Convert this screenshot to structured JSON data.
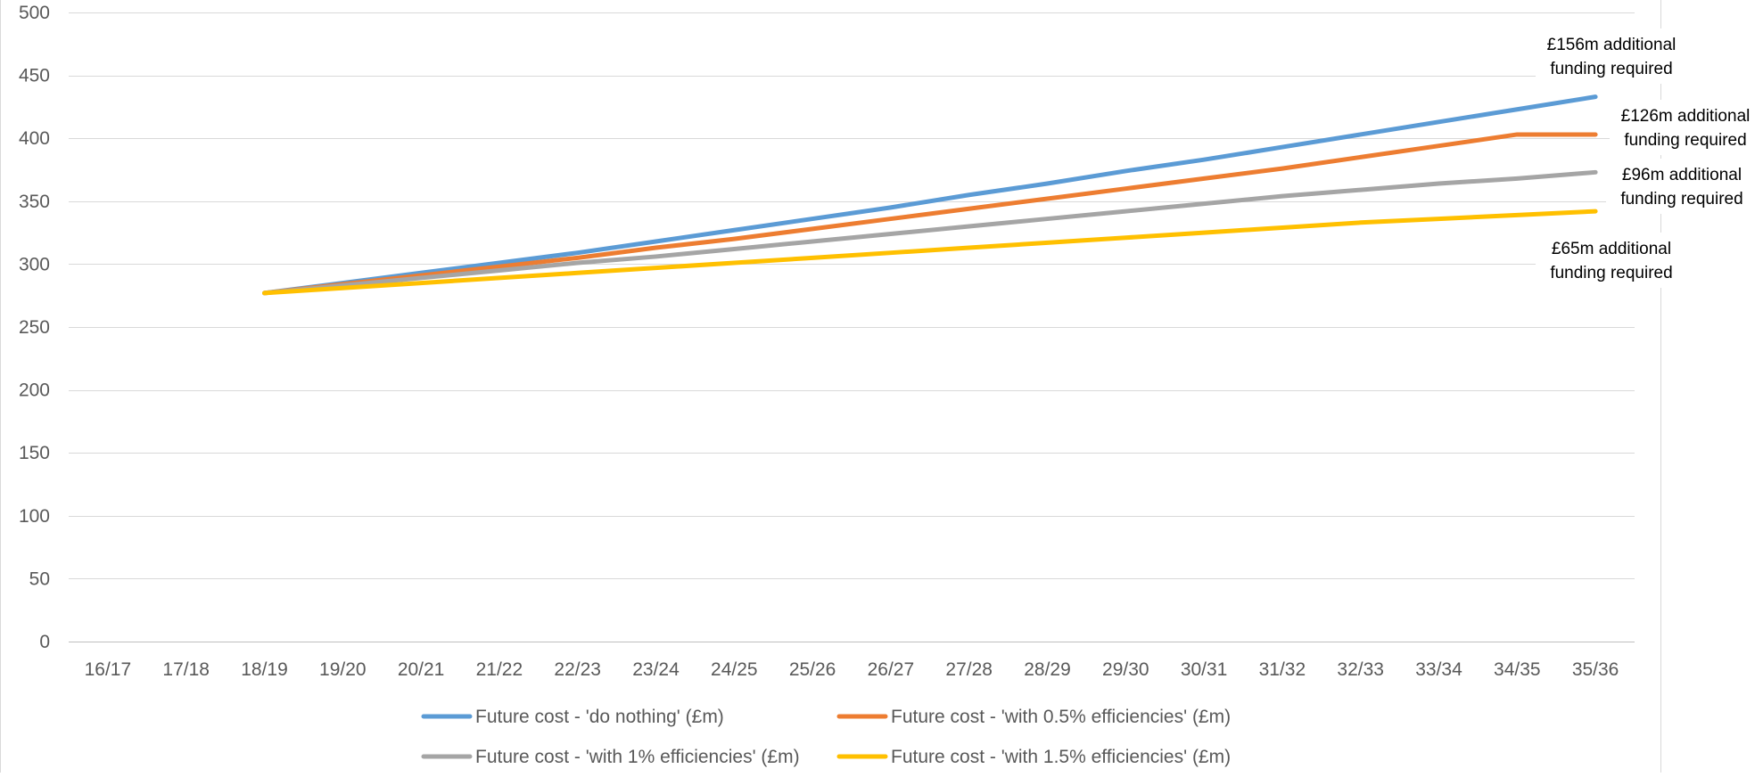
{
  "chart_data": {
    "type": "line",
    "title": "",
    "xlabel": "",
    "ylabel": "",
    "x": [
      "16/17",
      "17/18",
      "18/19",
      "19/20",
      "20/21",
      "21/22",
      "22/23",
      "23/24",
      "24/25",
      "25/26",
      "26/27",
      "27/28",
      "28/29",
      "29/30",
      "30/31",
      "31/32",
      "32/33",
      "33/34",
      "34/35",
      "35/36"
    ],
    "ylim": [
      0,
      500
    ],
    "yticks": [
      0,
      50,
      100,
      150,
      200,
      250,
      300,
      350,
      400,
      450,
      500
    ],
    "grid": true,
    "legend_position": "bottom",
    "series": [
      {
        "name": "Future cost - 'do nothing' (£m)",
        "color": "#5B9BD5",
        "values": [
          null,
          null,
          277,
          285,
          293,
          301,
          309,
          318,
          327,
          336,
          345,
          355,
          364,
          374,
          383,
          393,
          403,
          413,
          423,
          433
        ]
      },
      {
        "name": "Future cost - 'with 0.5% efficiencies' (£m)",
        "color": "#ED7D31",
        "values": [
          null,
          null,
          277,
          284,
          291,
          298,
          305,
          313,
          320,
          328,
          336,
          344,
          352,
          360,
          368,
          376,
          385,
          394,
          403,
          403
        ]
      },
      {
        "name": "Future cost - 'with 1% efficiencies' (£m)",
        "color": "#A5A5A5",
        "values": [
          null,
          null,
          277,
          283,
          289,
          295,
          301,
          306,
          312,
          318,
          324,
          330,
          336,
          342,
          348,
          354,
          359,
          364,
          368,
          373
        ]
      },
      {
        "name": "Future cost - 'with 1.5% efficiencies' (£m)",
        "color": "#FFC000",
        "values": [
          null,
          null,
          277,
          281,
          285,
          289,
          293,
          297,
          301,
          305,
          309,
          313,
          317,
          321,
          325,
          329,
          333,
          336,
          339,
          342
        ]
      }
    ],
    "annotations": [
      {
        "lines": [
          "£156m additional",
          "funding required"
        ],
        "series": 0
      },
      {
        "lines": [
          "£126m additional",
          "funding required"
        ],
        "series": 1
      },
      {
        "lines": [
          "£96m additional",
          "funding required"
        ],
        "series": 2
      },
      {
        "lines": [
          "£65m additional",
          "funding required"
        ],
        "series": 3
      }
    ]
  }
}
